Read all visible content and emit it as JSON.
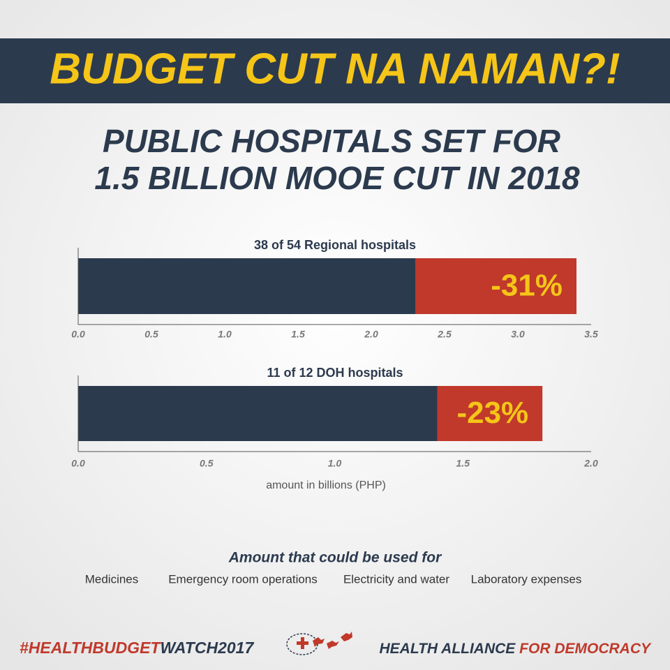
{
  "banner": "BUDGET CUT NA NAMAN?!",
  "headline": [
    "PUBLIC HOSPITALS SET FOR",
    "1.5 BILLION MOOE CUT IN 2018"
  ],
  "uses": {
    "title": "Amount that could be used for",
    "items": [
      "Medicines",
      "Emergency room operations",
      "Electricity and water",
      "Laboratory expenses"
    ]
  },
  "footer": {
    "hashtag": [
      "#HEALTHBUDGET",
      "WATCH2017"
    ],
    "organization": [
      "HEALTH ALLIANCE ",
      "FOR DEMOCRACY"
    ]
  },
  "chart_data": [
    {
      "type": "bar",
      "orientation": "horizontal",
      "stacked": true,
      "title": "38 of 54 Regional hospitals",
      "series": [
        {
          "color": "#2c3a4e",
          "values": [
            2.3
          ]
        },
        {
          "color": "#c0392b",
          "values": [
            1.1
          ]
        }
      ],
      "annotation": "-31%",
      "xlim": [
        0,
        3.5
      ],
      "xticks": [
        {
          "value": 0,
          "label": "0.0"
        },
        0.5,
        {
          "value": 1,
          "label": "1.0"
        },
        1.5,
        {
          "value": 2,
          "label": "2.0"
        },
        2.5,
        {
          "value": 3,
          "label": "3.0"
        },
        3.5
      ]
    },
    {
      "type": "bar",
      "orientation": "horizontal",
      "stacked": true,
      "title": "11 of 12 DOH hospitals",
      "series": [
        {
          "color": "#2c3a4e",
          "values": [
            1.4
          ]
        },
        {
          "color": "#c0392b",
          "values": [
            0.41
          ]
        }
      ],
      "annotation": "-23%",
      "xlim": [
        0,
        2
      ],
      "xticks": [
        {
          "value": 0,
          "label": "0.0"
        },
        0.5,
        {
          "value": 1,
          "label": "1.0"
        },
        1.5,
        {
          "value": 2,
          "label": "2.0"
        }
      ],
      "xlabel": "amount in billions (PHP)"
    }
  ]
}
